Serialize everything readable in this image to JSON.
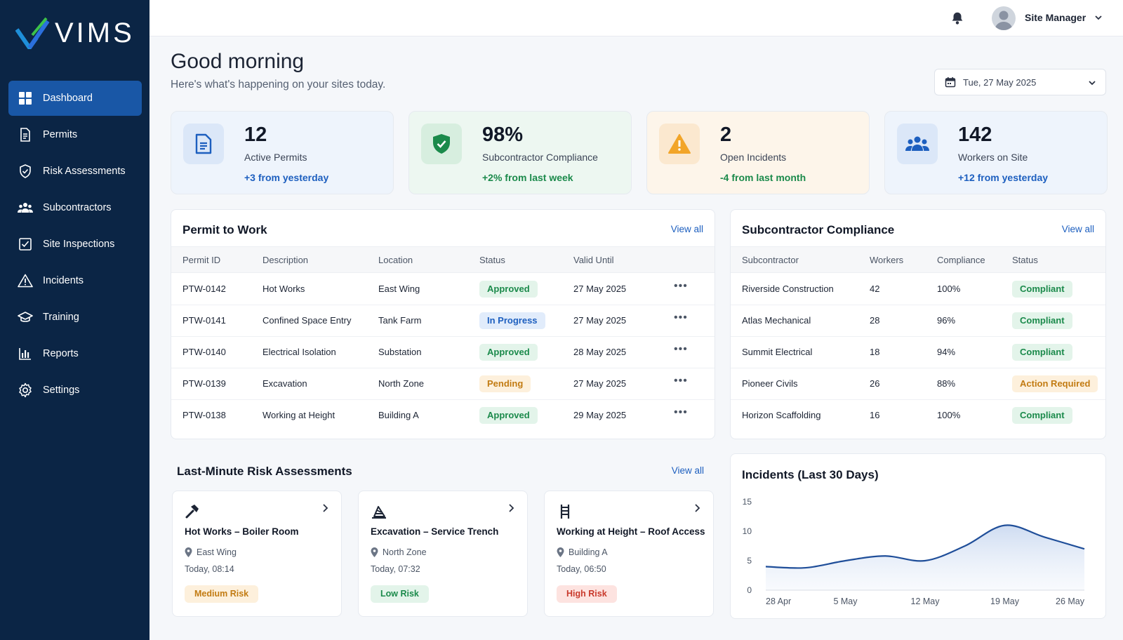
{
  "app": {
    "logo_text": "VIMS"
  },
  "sidebar": {
    "items": [
      {
        "label": "Dashboard",
        "icon": "dashboard-icon",
        "active": true
      },
      {
        "label": "Permits",
        "icon": "document-icon"
      },
      {
        "label": "Risk Assessments",
        "icon": "shield-icon"
      },
      {
        "label": "Subcontractors",
        "icon": "users-icon"
      },
      {
        "label": "Site Inspections",
        "icon": "checklist-icon"
      },
      {
        "label": "Incidents",
        "icon": "warning-icon"
      },
      {
        "label": "Training",
        "icon": "graduation-cap-icon"
      },
      {
        "label": "Reports",
        "icon": "bar-chart-icon"
      },
      {
        "label": "Settings",
        "icon": "gear-icon"
      }
    ]
  },
  "topbar": {
    "user_name": "Site Manager"
  },
  "header": {
    "greeting": "Good morning",
    "subtitle": "Here's what's happening on your sites today.",
    "date": "Tue, 27 May 2025"
  },
  "stats": [
    {
      "value": "12",
      "label": "Active Permits",
      "change": "+3 from yesterday",
      "icon": "document-icon",
      "bg": "#eef4fc",
      "icon_bg": "#dbe7f8",
      "accent": "#1d5fbf"
    },
    {
      "value": "98%",
      "label": "Subcontractor Compliance",
      "change": "+2% from last week",
      "icon": "shield-check-icon",
      "bg": "#edf7f1",
      "icon_bg": "#d7eedf",
      "accent": "#1b8a4b"
    },
    {
      "value": "2",
      "label": "Open Incidents",
      "change": "-4 from last month",
      "icon": "warning-icon",
      "bg": "#fdf5ea",
      "icon_bg": "#fbe8cf",
      "accent": "#1b8a4b"
    },
    {
      "value": "142",
      "label": "Workers on Site",
      "change": "+12 from yesterday",
      "icon": "users-icon",
      "bg": "#eef4fc",
      "icon_bg": "#dbe7f8",
      "accent": "#1d5fbf"
    }
  ],
  "permits": {
    "title": "Permit to Work",
    "view_all": "View all",
    "columns": [
      "Permit ID",
      "Description",
      "Location",
      "Status",
      "Valid Until"
    ],
    "rows": [
      {
        "id": "PTW-0142",
        "description": "Hot Works",
        "location": "East Wing",
        "status": "Approved",
        "status_type": "green",
        "valid_until": "27 May 2025"
      },
      {
        "id": "PTW-0141",
        "description": "Confined Space Entry",
        "location": "Tank Farm",
        "status": "In Progress",
        "status_type": "blue",
        "valid_until": "27 May 2025"
      },
      {
        "id": "PTW-0140",
        "description": "Electrical Isolation",
        "location": "Substation",
        "status": "Approved",
        "status_type": "green",
        "valid_until": "28 May 2025"
      },
      {
        "id": "PTW-0139",
        "description": "Excavation",
        "location": "North Zone",
        "status": "Pending",
        "status_type": "orange",
        "valid_until": "27 May 2025"
      },
      {
        "id": "PTW-0138",
        "description": "Working at Height",
        "location": "Building A",
        "status": "Approved",
        "status_type": "green",
        "valid_until": "29 May 2025"
      }
    ]
  },
  "subcontractors": {
    "title": "Subcontractor Compliance",
    "view_all": "View all",
    "columns": [
      "Subcontractor",
      "Workers",
      "Compliance",
      "Status"
    ],
    "rows": [
      {
        "name": "Riverside Construction",
        "workers": "42",
        "compliance": "100%",
        "status": "Compliant",
        "status_type": "green"
      },
      {
        "name": "Atlas Mechanical",
        "workers": "28",
        "compliance": "96%",
        "status": "Compliant",
        "status_type": "green"
      },
      {
        "name": "Summit Electrical",
        "workers": "18",
        "compliance": "94%",
        "status": "Compliant",
        "status_type": "green"
      },
      {
        "name": "Pioneer Civils",
        "workers": "26",
        "compliance": "88%",
        "status": "Action Required",
        "status_type": "orange"
      },
      {
        "name": "Horizon Scaffolding",
        "workers": "16",
        "compliance": "100%",
        "status": "Compliant",
        "status_type": "green"
      }
    ]
  },
  "risk_assessments": {
    "title": "Last-Minute Risk Assessments",
    "view_all": "View all",
    "items": [
      {
        "title": "Hot Works – Boiler Room",
        "location": "East Wing",
        "time": "Today, 08:14",
        "risk": "Medium Risk",
        "risk_type": "med",
        "icon": "hammer-icon"
      },
      {
        "title": "Excavation – Service Trench",
        "location": "North Zone",
        "time": "Today, 07:32",
        "risk": "Low Risk",
        "risk_type": "low",
        "icon": "excavator-icon"
      },
      {
        "title": "Working at Height – Roof Access",
        "location": "Building A",
        "time": "Today, 06:50",
        "risk": "High Risk",
        "risk_type": "high",
        "icon": "ladder-icon"
      }
    ]
  },
  "chart_data": {
    "type": "area",
    "title": "Incidents (Last 30 Days)",
    "x": [
      "28 Apr",
      "1 May",
      "5 May",
      "8 May",
      "12 May",
      "15 May",
      "19 May",
      "23 May",
      "26 May"
    ],
    "values": [
      4,
      3.8,
      5,
      5.8,
      5,
      7.5,
      11,
      9,
      7
    ],
    "tick_labels_x": [
      "28 Apr",
      "5 May",
      "12 May",
      "19 May",
      "26 May"
    ],
    "tick_labels_y": [
      "0",
      "5",
      "10",
      "15"
    ],
    "ylim": [
      0,
      15
    ],
    "line_color": "#1f4e99",
    "grid": false
  }
}
